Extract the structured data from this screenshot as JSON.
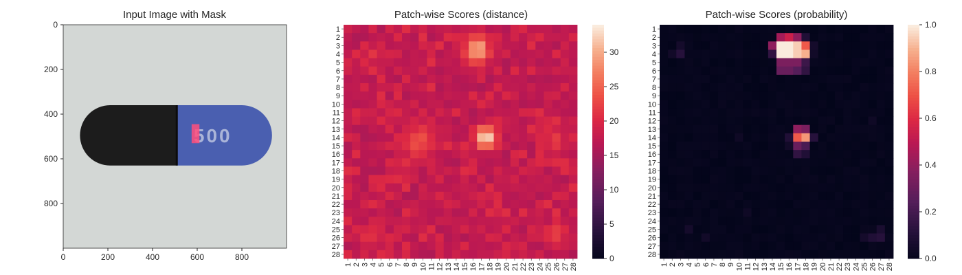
{
  "figure": {
    "background": "#ffffff"
  },
  "chart_data": [
    {
      "type": "image",
      "title": "Input Image with Mask",
      "xlim": [
        0,
        1000
      ],
      "ylim": [
        1000,
        0
      ],
      "x_ticks": [
        0,
        200,
        400,
        600,
        800
      ],
      "y_ticks": [
        0,
        200,
        400,
        600,
        800
      ],
      "image_content": {
        "object": "capsule-pill",
        "background_color": "#d3d7d5",
        "cap_color": "#1c1c1c",
        "body_color": "#4a5fb0",
        "pill_extent_x": [
          75,
          935
        ],
        "pill_extent_y": [
          360,
          630
        ],
        "seam_x": 510,
        "print_text": "500",
        "print_color": "#aab4d8",
        "mask_color": "#ff4f7c",
        "mask_region_x": [
          575,
          610
        ],
        "mask_region_y": [
          445,
          530
        ]
      }
    },
    {
      "type": "heatmap",
      "title": "Patch-wise Scores (distance)",
      "grid_size": 28,
      "x_tick_labels": [
        "1",
        "2",
        "3",
        "4",
        "5",
        "6",
        "7",
        "8",
        "9",
        "10",
        "11",
        "12",
        "13",
        "14",
        "15",
        "16",
        "17",
        "18",
        "19",
        "20",
        "21",
        "22",
        "23",
        "24",
        "25",
        "26",
        "27",
        "28"
      ],
      "y_tick_labels": [
        "1",
        "2",
        "3",
        "4",
        "5",
        "6",
        "7",
        "8",
        "9",
        "10",
        "11",
        "12",
        "13",
        "14",
        "15",
        "16",
        "17",
        "18",
        "19",
        "20",
        "21",
        "22",
        "23",
        "24",
        "25",
        "26",
        "27",
        "28"
      ],
      "colormap": "rocket",
      "vmin": 0,
      "vmax": 34,
      "colorbar_ticks": [
        0,
        5,
        10,
        15,
        20,
        25,
        30
      ],
      "base_value": 17,
      "hotspots": [
        {
          "row": 3.5,
          "col": 16.5,
          "peak": 31,
          "spread_rows": 1.6,
          "spread_cols": 1.5
        },
        {
          "row": 14,
          "col": 17.5,
          "peak": 34,
          "spread_rows": 1.3,
          "spread_cols": 1.3
        },
        {
          "row": 14.5,
          "col": 9.5,
          "peak": 24,
          "spread_rows": 2.0,
          "spread_cols": 2.2
        },
        {
          "row": 14.5,
          "col": 26,
          "peak": 22,
          "spread_rows": 1.3,
          "spread_cols": 1.2
        },
        {
          "row": 25.5,
          "col": 4,
          "peak": 22,
          "spread_rows": 1.3,
          "spread_cols": 1.5
        },
        {
          "row": 25.5,
          "col": 26,
          "peak": 22,
          "spread_rows": 1.2,
          "spread_cols": 1.7
        },
        {
          "row": 4,
          "col": 4,
          "peak": 21,
          "spread_rows": 1.0,
          "spread_cols": 1.3
        },
        {
          "row": 12.5,
          "col": 25,
          "peak": 21,
          "spread_rows": 1.2,
          "spread_cols": 1.2
        }
      ],
      "noise_amplitude": 4
    },
    {
      "type": "heatmap",
      "title": "Patch-wise Scores (probability)",
      "grid_size": 28,
      "x_tick_labels": [
        "1",
        "2",
        "3",
        "4",
        "5",
        "6",
        "7",
        "8",
        "9",
        "10",
        "11",
        "12",
        "13",
        "14",
        "15",
        "16",
        "17",
        "18",
        "19",
        "20",
        "21",
        "22",
        "23",
        "24",
        "25",
        "26",
        "27",
        "28"
      ],
      "y_tick_labels": [
        "1",
        "2",
        "3",
        "4",
        "5",
        "6",
        "7",
        "8",
        "9",
        "10",
        "11",
        "12",
        "13",
        "14",
        "15",
        "16",
        "17",
        "18",
        "19",
        "20",
        "21",
        "22",
        "23",
        "24",
        "25",
        "26",
        "27",
        "28"
      ],
      "colormap": "rocket",
      "vmin": 0.0,
      "vmax": 1.0,
      "colorbar_ticks": [
        "0.0",
        "0.2",
        "0.4",
        "0.6",
        "0.8",
        "1.0"
      ],
      "base_value": 0.01,
      "cells": [
        {
          "row": 2,
          "col": 15,
          "value": 0.45
        },
        {
          "row": 2,
          "col": 16,
          "value": 0.55
        },
        {
          "row": 2,
          "col": 17,
          "value": 0.4
        },
        {
          "row": 2,
          "col": 18,
          "value": 0.1
        },
        {
          "row": 3,
          "col": 14,
          "value": 0.4
        },
        {
          "row": 3,
          "col": 15,
          "value": 1.0
        },
        {
          "row": 3,
          "col": 16,
          "value": 1.0
        },
        {
          "row": 3,
          "col": 17,
          "value": 0.95
        },
        {
          "row": 3,
          "col": 18,
          "value": 0.72
        },
        {
          "row": 4,
          "col": 14,
          "value": 0.15
        },
        {
          "row": 4,
          "col": 15,
          "value": 1.0
        },
        {
          "row": 4,
          "col": 16,
          "value": 1.0
        },
        {
          "row": 4,
          "col": 17,
          "value": 0.95
        },
        {
          "row": 4,
          "col": 18,
          "value": 0.9
        },
        {
          "row": 5,
          "col": 15,
          "value": 0.35
        },
        {
          "row": 5,
          "col": 16,
          "value": 0.35
        },
        {
          "row": 5,
          "col": 17,
          "value": 0.35
        },
        {
          "row": 5,
          "col": 18,
          "value": 0.18
        },
        {
          "row": 6,
          "col": 15,
          "value": 0.3
        },
        {
          "row": 6,
          "col": 16,
          "value": 0.3
        },
        {
          "row": 6,
          "col": 17,
          "value": 0.25
        },
        {
          "row": 6,
          "col": 18,
          "value": 0.15
        },
        {
          "row": 4,
          "col": 3,
          "value": 0.12
        },
        {
          "row": 3,
          "col": 3,
          "value": 0.06
        },
        {
          "row": 4,
          "col": 2,
          "value": 0.05
        },
        {
          "row": 3,
          "col": 19,
          "value": 0.06
        },
        {
          "row": 4,
          "col": 19,
          "value": 0.05
        },
        {
          "row": 13,
          "col": 17,
          "value": 0.4
        },
        {
          "row": 13,
          "col": 18,
          "value": 0.35
        },
        {
          "row": 14,
          "col": 17,
          "value": 0.72
        },
        {
          "row": 14,
          "col": 18,
          "value": 0.85
        },
        {
          "row": 14,
          "col": 16,
          "value": 0.1
        },
        {
          "row": 14,
          "col": 19,
          "value": 0.12
        },
        {
          "row": 15,
          "col": 17,
          "value": 0.3
        },
        {
          "row": 15,
          "col": 18,
          "value": 0.22
        },
        {
          "row": 15,
          "col": 16,
          "value": 0.05
        },
        {
          "row": 16,
          "col": 17,
          "value": 0.15
        },
        {
          "row": 16,
          "col": 18,
          "value": 0.1
        },
        {
          "row": 14,
          "col": 10,
          "value": 0.04
        },
        {
          "row": 26,
          "col": 26,
          "value": 0.1
        },
        {
          "row": 26,
          "col": 27,
          "value": 0.12
        },
        {
          "row": 25,
          "col": 27,
          "value": 0.08
        },
        {
          "row": 26,
          "col": 25,
          "value": 0.06
        },
        {
          "row": 25,
          "col": 4,
          "value": 0.06
        },
        {
          "row": 26,
          "col": 6,
          "value": 0.05
        },
        {
          "row": 23,
          "col": 11,
          "value": 0.04
        },
        {
          "row": 12,
          "col": 26,
          "value": 0.04
        }
      ]
    }
  ]
}
